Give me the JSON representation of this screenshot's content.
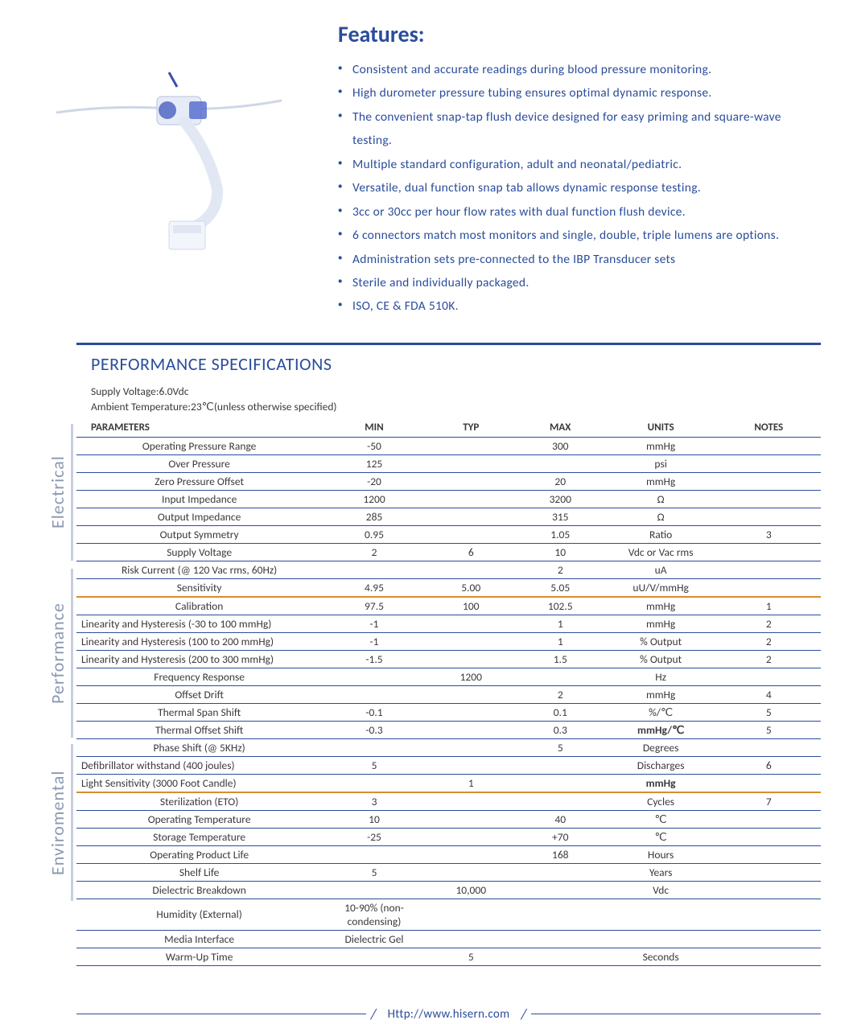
{
  "colors": {
    "accent": "#2a4d9b",
    "text_main": "#3a3a3a",
    "text_blue": "#2a4d9b",
    "rule": "#2a4d9b",
    "cell_border": "#2a4d9b",
    "vlabel": "#8a98b0",
    "vlabel_bar": "#c6cedf",
    "section_orange": "#d98c2e",
    "bg": "#ffffff"
  },
  "features": {
    "title": "Features:",
    "title_color": "#2a4d9b",
    "bullet_color": "#2a4d9b",
    "text_color": "#2a4d9b",
    "font_size": 15.5,
    "items": [
      "Consistent and accurate readings during blood pressure monitoring.",
      "High durometer pressure tubing ensures optimal dynamic response.",
      "The convenient snap-tap flush device designed for easy priming and square-wave testing.",
      "Multiple standard configuration, adult and neonatal/pediatric.",
      "Versatile, dual function snap tab allows dynamic response testing.",
      "3cc or 30cc per hour flow rates with dual function flush device.",
      "6 connectors match most monitors and single, double, triple lumens are options.",
      "Administration sets pre-connected to the IBP Transducer sets",
      "Sterile and individually packaged.",
      "ISO, CE & FDA 510K."
    ]
  },
  "spec": {
    "section_title": "PERFORMANCE SPECIFICATIONS",
    "title_color": "#2a4d9b",
    "meta": [
      "Supply Voltage:6.0Vdc",
      "Ambient Temperature:23℃(unless otherwise specified)"
    ],
    "headers": [
      "PARAMETERS",
      "MIN",
      "TYP",
      "MAX",
      "UNITS",
      "NOTES"
    ],
    "col_widths": [
      "33%",
      "14%",
      "12%",
      "12%",
      "15%",
      "14%"
    ],
    "groups": [
      {
        "label": "Electrical",
        "divider_color": "#d98c2e",
        "rows": [
          {
            "param": "Operating Pressure Range",
            "min": "-50",
            "typ": "",
            "max": "300",
            "units": "mmHg",
            "notes": ""
          },
          {
            "param": "Over  Pressure",
            "min": "125",
            "typ": "",
            "max": "",
            "units": "psi",
            "notes": ""
          },
          {
            "param": "Zero Pressure Offset",
            "min": "-20",
            "typ": "",
            "max": "20",
            "units": "mmHg",
            "notes": ""
          },
          {
            "param": "Input Impedance",
            "min": "1200",
            "typ": "",
            "max": "3200",
            "units": "Ω",
            "notes": ""
          },
          {
            "param": "Output Impedance",
            "min": "285",
            "typ": "",
            "max": "315",
            "units": "Ω",
            "notes": ""
          },
          {
            "param": "Output Symmetry",
            "min": "0.95",
            "typ": "",
            "max": "1.05",
            "units": "Ratio",
            "notes": "3"
          },
          {
            "param": "Supply Voltage",
            "min": "2",
            "typ": "6",
            "max": "10",
            "units": "Vdc or Vac rms",
            "notes": ""
          },
          {
            "param": "Risk Current (@ 120 Vac rms, 60Hz)",
            "min": "",
            "typ": "",
            "max": "2",
            "units": "uA",
            "notes": ""
          },
          {
            "param": "Sensitivity",
            "min": "4.95",
            "typ": "5.00",
            "max": "5.05",
            "units": "uU/V/mmHg",
            "notes": ""
          }
        ]
      },
      {
        "label": "Performance",
        "divider_color": "#d98c2e",
        "rows": [
          {
            "param": "Calibration",
            "min": "97.5",
            "typ": "100",
            "max": "102.5",
            "units": "mmHg",
            "notes": "1"
          },
          {
            "param": "Linearity and Hysteresis (-30 to 100 mmHg)",
            "min": "-1",
            "typ": "",
            "max": "1",
            "units": "mmHg",
            "notes": "2",
            "param_align": "left"
          },
          {
            "param": "Linearity and Hysteresis (100 to 200 mmHg)",
            "min": "-1",
            "typ": "",
            "max": "1",
            "units": "% Output",
            "notes": "2",
            "param_align": "left"
          },
          {
            "param": "Linearity and Hysteresis (200 to 300 mmHg)",
            "min": "-1.5",
            "typ": "",
            "max": "1.5",
            "units": "% Output",
            "notes": "2",
            "param_align": "left"
          },
          {
            "param": "Frequency Response",
            "min": "",
            "typ": "1200",
            "max": "",
            "units": "Hz",
            "notes": ""
          },
          {
            "param": "Offset Drift",
            "min": "",
            "typ": "",
            "max": "2",
            "units": "mmHg",
            "notes": "4"
          },
          {
            "param": "Thermal Span Shift",
            "min": "-0.1",
            "typ": "",
            "max": "0.1",
            "units": "%/℃",
            "notes": "5"
          },
          {
            "param": "Thermal Offset Shift",
            "min": "-0.3",
            "typ": "",
            "max": "0.3",
            "units": "mmHg/℃",
            "units_bold": true,
            "notes": "5"
          },
          {
            "param": "Phase Shift (@ 5KHz)",
            "min": "",
            "typ": "",
            "max": "5",
            "units": "Degrees",
            "notes": ""
          },
          {
            "param": "Defibrillator withstand (400 joules)",
            "min": "5",
            "typ": "",
            "max": "",
            "units": "Discharges",
            "notes": "6",
            "param_align": "left"
          },
          {
            "param": "Light Sensitivity (3000 Foot Candle)",
            "min": "",
            "typ": "1",
            "max": "",
            "units": "mmHg",
            "units_bold": true,
            "notes": "",
            "param_align": "left"
          }
        ]
      },
      {
        "label": "Enviromental",
        "divider_color": "#d98c2e",
        "rows": [
          {
            "param": "Sterilization (ETO)",
            "min": "3",
            "typ": "",
            "max": "",
            "units": "Cycles",
            "notes": "7"
          },
          {
            "param": "Operating Temperature",
            "min": "10",
            "typ": "",
            "max": "40",
            "units": "℃",
            "notes": ""
          },
          {
            "param": "Storage Temperature",
            "min": "-25",
            "typ": "",
            "max": "+70",
            "units": "℃",
            "notes": ""
          },
          {
            "param": "Operating Product Life",
            "min": "",
            "typ": "",
            "max": "168",
            "units": "Hours",
            "notes": ""
          },
          {
            "param": "Shelf Life",
            "min": "5",
            "typ": "",
            "max": "",
            "units": "Years",
            "notes": ""
          },
          {
            "param": "Dielectric Breakdown",
            "min": "",
            "typ": "10,000",
            "max": "",
            "units": "Vdc",
            "notes": ""
          },
          {
            "param": "Humidity (External)",
            "min": "10-90% (non-condensing)",
            "typ": "",
            "max": "",
            "units": "",
            "notes": ""
          },
          {
            "param": "Media Interface",
            "min": "Dielectric Gel",
            "typ": "",
            "max": "",
            "units": "",
            "notes": ""
          },
          {
            "param": "Warm-Up Time",
            "min": "",
            "typ": "5",
            "max": "",
            "units": "Seconds",
            "notes": ""
          }
        ]
      }
    ]
  },
  "footer": {
    "url": "Http://www.hisern.com",
    "color": "#2a4d9b"
  }
}
